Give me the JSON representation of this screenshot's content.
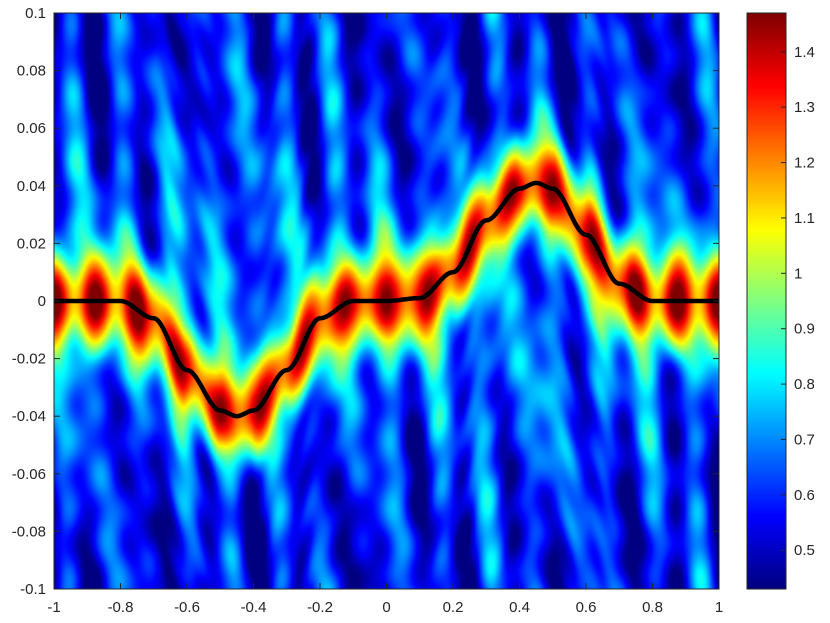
{
  "chart_data": {
    "type": "heatmap",
    "title": "",
    "xlabel": "",
    "ylabel": "",
    "xlim": [
      -1,
      1
    ],
    "ylim": [
      -0.1,
      0.1
    ],
    "x_ticks": [
      "-1",
      "-0.8",
      "-0.6",
      "-0.4",
      "-0.2",
      "0",
      "0.2",
      "0.4",
      "0.6",
      "0.8",
      "1"
    ],
    "x_tick_values": [
      -1,
      -0.8,
      -0.6,
      -0.4,
      -0.2,
      0,
      0.2,
      0.4,
      0.6,
      0.8,
      1
    ],
    "y_ticks": [
      "0.1",
      "0.08",
      "0.06",
      "0.04",
      "0.02",
      "0",
      "-0.02",
      "-0.04",
      "-0.06",
      "-0.08",
      "-0.1"
    ],
    "y_tick_values": [
      0.1,
      0.08,
      0.06,
      0.04,
      0.02,
      0,
      -0.02,
      -0.04,
      -0.06,
      -0.08,
      -0.1
    ],
    "colormap": "jet",
    "color_range": [
      0.43,
      1.47
    ],
    "colorbar_ticks": [
      "1.4",
      "1.3",
      "1.2",
      "1.1",
      "1",
      "0.9",
      "0.8",
      "0.7",
      "0.6",
      "0.5"
    ],
    "colorbar_tick_values": [
      1.4,
      1.3,
      1.2,
      1.1,
      1.0,
      0.9,
      0.8,
      0.7,
      0.6,
      0.5
    ],
    "grid": false,
    "overlay_curve": {
      "color": "#000000",
      "description_points_x": [
        -1,
        -0.8,
        -0.7,
        -0.6,
        -0.5,
        -0.45,
        -0.4,
        -0.3,
        -0.2,
        -0.1,
        0,
        0.1,
        0.2,
        0.3,
        0.4,
        0.45,
        0.5,
        0.6,
        0.7,
        0.8,
        1
      ],
      "description_points_y": [
        0,
        0,
        -0.006,
        -0.024,
        -0.038,
        -0.04,
        -0.038,
        -0.024,
        -0.006,
        0,
        0,
        0.001,
        0.01,
        0.028,
        0.039,
        0.041,
        0.039,
        0.023,
        0.006,
        0,
        0
      ]
    },
    "ridge_peak_value": 1.35,
    "background_value": 0.55
  }
}
